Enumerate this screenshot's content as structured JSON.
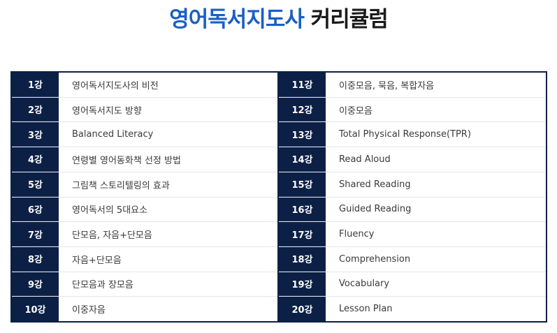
{
  "title": {
    "accent": "영어독서지도사",
    "rest": "커리큘럼"
  },
  "lessons_left": [
    {
      "num": "1강",
      "title": "영어독서지도사의 비전"
    },
    {
      "num": "2강",
      "title": "영어독서지도 방향"
    },
    {
      "num": "3강",
      "title": "Balanced Literacy"
    },
    {
      "num": "4강",
      "title": "연령별 영어동화책 선정 방법"
    },
    {
      "num": "5강",
      "title": "그림책 스토리텔링의 효과"
    },
    {
      "num": "6강",
      "title": "영어독서의 5대요소"
    },
    {
      "num": "7강",
      "title": "단모음, 자음+단모음"
    },
    {
      "num": "8강",
      "title": "자음+단모음"
    },
    {
      "num": "9강",
      "title": "단모음과 장모음"
    },
    {
      "num": "10강",
      "title": "이중자음"
    }
  ],
  "lessons_right": [
    {
      "num": "11강",
      "title": "이중모음, 묵음, 복합자음"
    },
    {
      "num": "12강",
      "title": "이중모음"
    },
    {
      "num": "13강",
      "title": "Total Physical Response(TPR)"
    },
    {
      "num": "14강",
      "title": "Read Aloud"
    },
    {
      "num": "15강",
      "title": "Shared Reading"
    },
    {
      "num": "16강",
      "title": "Guided Reading"
    },
    {
      "num": "17강",
      "title": "Fluency"
    },
    {
      "num": "18강",
      "title": "Comprehension"
    },
    {
      "num": "19강",
      "title": "Vocabulary"
    },
    {
      "num": "20강",
      "title": "Lesson Plan"
    }
  ]
}
